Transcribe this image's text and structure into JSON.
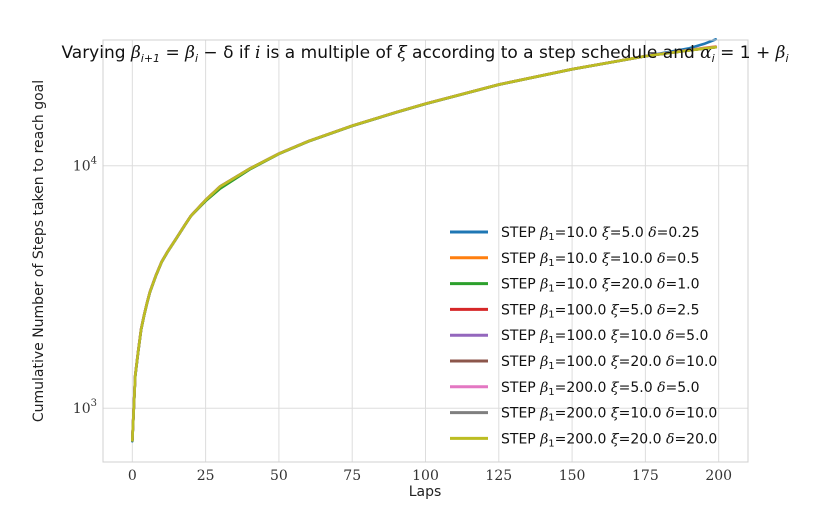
{
  "chart_data": {
    "type": "line",
    "title": "Varying β_{i+1} = β_i − δ if i is a multiple of ξ according to a step schedule and α_i = 1 + β_i",
    "title_parts": [
      "Varying ",
      "β",
      "i+1",
      " = ",
      "β",
      "i",
      " − δ if ",
      "i",
      " is a multiple of ",
      "ξ",
      " according to a step schedule and ",
      "α",
      "i",
      " = 1 + ",
      "β",
      "i"
    ],
    "xlabel": "Laps",
    "ylabel": "Cumulative Number of Steps taken to reach goal",
    "xlim": [
      -10,
      210
    ],
    "ylim": [
      600,
      33000
    ],
    "yscale": "log",
    "x_ticks": [
      0,
      25,
      50,
      75,
      100,
      125,
      150,
      175,
      200
    ],
    "x_tick_labels": [
      "0",
      "25",
      "50",
      "75",
      "100",
      "125",
      "150",
      "175",
      "200"
    ],
    "y_ticks": [
      1000,
      10000
    ],
    "y_tick_labels": [
      {
        "base": "10",
        "exp": "3"
      },
      {
        "base": "10",
        "exp": "4"
      }
    ],
    "grid": true,
    "legend_position": "lower-right",
    "series": [
      {
        "name": "STEP β1=10.0 ξ=5.0 δ=0.25",
        "color": "#1f77b4",
        "x": [
          0,
          1,
          2,
          3,
          4,
          5,
          6,
          8,
          10,
          12,
          15,
          18,
          20,
          25,
          30,
          40,
          50,
          60,
          75,
          90,
          100,
          125,
          150,
          175,
          190,
          195,
          199
        ],
        "y": [
          730,
          1350,
          1700,
          2100,
          2400,
          2700,
          3000,
          3500,
          4000,
          4400,
          5000,
          5700,
          6200,
          7200,
          8200,
          9700,
          11200,
          12600,
          14600,
          16600,
          18000,
          21600,
          25000,
          28300,
          30500,
          31800,
          33200
        ]
      },
      {
        "name": "STEP β1=10.0 ξ=10.0 δ=0.5",
        "color": "#ff7f0e",
        "x": [
          0,
          1,
          2,
          3,
          4,
          5,
          6,
          8,
          10,
          12,
          15,
          18,
          20,
          25,
          30,
          40,
          50,
          60,
          75,
          90,
          100,
          125,
          150,
          175,
          190,
          195,
          199
        ],
        "y": [
          740,
          1370,
          1720,
          2120,
          2420,
          2720,
          3020,
          3520,
          4020,
          4420,
          5020,
          5720,
          6220,
          7230,
          8230,
          9720,
          11220,
          12620,
          14620,
          16620,
          18020,
          21620,
          25020,
          28320,
          30000,
          30600,
          31000
        ]
      },
      {
        "name": "STEP β1=10.0 ξ=20.0 δ=1.0",
        "color": "#2ca02c",
        "x": [
          0,
          1,
          2,
          3,
          4,
          5,
          6,
          8,
          10,
          12,
          15,
          18,
          20,
          25,
          30,
          40,
          50,
          60,
          75,
          90,
          100,
          125,
          150,
          175,
          190,
          195,
          199
        ],
        "y": [
          735,
          1360,
          1710,
          2110,
          2410,
          2710,
          3010,
          3510,
          4010,
          4410,
          5010,
          5710,
          6210,
          7150,
          8050,
          9650,
          11180,
          12580,
          14580,
          16580,
          17980,
          21580,
          24980,
          28280,
          29900,
          30400,
          30800
        ]
      },
      {
        "name": "STEP β1=100.0 ξ=5.0 δ=2.5",
        "color": "#d62728",
        "x": [
          0,
          1,
          2,
          3,
          4,
          5,
          6,
          8,
          10,
          12,
          15,
          18,
          20,
          25,
          30,
          40,
          50,
          60,
          75,
          90,
          100,
          125,
          150,
          175,
          190,
          195,
          199
        ],
        "y": [
          738,
          1365,
          1715,
          2115,
          2415,
          2715,
          3015,
          3515,
          4015,
          4415,
          5015,
          5715,
          6215,
          7215,
          8215,
          9715,
          11215,
          12615,
          14615,
          16615,
          18015,
          21615,
          25015,
          28315,
          29950,
          30450,
          30850
        ]
      },
      {
        "name": "STEP β1=100.0 ξ=10.0 δ=5.0",
        "color": "#9467bd",
        "x": [
          0,
          1,
          2,
          3,
          4,
          5,
          6,
          8,
          10,
          12,
          15,
          18,
          20,
          25,
          30,
          40,
          50,
          60,
          75,
          90,
          100,
          125,
          150,
          175,
          190,
          195,
          199
        ],
        "y": [
          742,
          1372,
          1722,
          2122,
          2422,
          2722,
          3022,
          3522,
          4022,
          4422,
          5022,
          5722,
          6222,
          7222,
          8222,
          9722,
          11222,
          12622,
          14622,
          16622,
          18022,
          21622,
          25022,
          28322,
          29980,
          30480,
          30880
        ]
      },
      {
        "name": "STEP β1=100.0 ξ=20.0 δ=10.0",
        "color": "#8c564b",
        "x": [
          0,
          1,
          2,
          3,
          4,
          5,
          6,
          8,
          10,
          12,
          15,
          18,
          20,
          25,
          30,
          40,
          50,
          60,
          75,
          90,
          100,
          125,
          150,
          175,
          190,
          195,
          199
        ],
        "y": [
          736,
          1362,
          1712,
          2112,
          2412,
          2712,
          3012,
          3512,
          4012,
          4412,
          5012,
          5712,
          6212,
          7212,
          8212,
          9712,
          11212,
          12612,
          14612,
          16612,
          18012,
          21612,
          25012,
          28312,
          29920,
          30420,
          30820
        ]
      },
      {
        "name": "STEP β1=200.0 ξ=5.0 δ=5.0",
        "color": "#e377c2",
        "x": [
          0,
          1,
          2,
          3,
          4,
          5,
          6,
          8,
          10,
          12,
          15,
          18,
          20,
          25,
          30,
          40,
          50,
          60,
          75,
          90,
          100,
          125,
          150,
          175,
          190,
          195,
          199
        ],
        "y": [
          744,
          1374,
          1724,
          2124,
          2424,
          2724,
          3024,
          3524,
          4024,
          4424,
          5024,
          5724,
          6224,
          7224,
          8224,
          9724,
          11224,
          12624,
          14624,
          16624,
          18024,
          21624,
          25024,
          28324,
          29990,
          30490,
          30890
        ]
      },
      {
        "name": "STEP β1=200.0 ξ=10.0 δ=10.0",
        "color": "#7f7f7f",
        "x": [
          0,
          1,
          2,
          3,
          4,
          5,
          6,
          8,
          10,
          12,
          15,
          18,
          20,
          25,
          30,
          40,
          50,
          60,
          75,
          90,
          100,
          125,
          150,
          175,
          190,
          195,
          199
        ],
        "y": [
          739,
          1366,
          1716,
          2116,
          2416,
          2716,
          3016,
          3516,
          4016,
          4416,
          5016,
          5716,
          6216,
          7216,
          8216,
          9716,
          11216,
          12616,
          14616,
          16616,
          18016,
          21616,
          25016,
          28316,
          29940,
          30440,
          30840
        ]
      },
      {
        "name": "STEP β1=200.0 ξ=20.0 δ=20.0",
        "color": "#bcbd22",
        "x": [
          0,
          1,
          2,
          3,
          4,
          5,
          6,
          8,
          10,
          12,
          15,
          18,
          20,
          25,
          30,
          40,
          50,
          60,
          75,
          90,
          100,
          125,
          150,
          175,
          190,
          195,
          199
        ],
        "y": [
          737,
          1363,
          1713,
          2113,
          2413,
          2713,
          3013,
          3513,
          4013,
          4413,
          5013,
          5713,
          6213,
          7213,
          8213,
          9713,
          11213,
          12613,
          14613,
          16613,
          18013,
          21613,
          25013,
          28313,
          29930,
          30430,
          30830
        ]
      }
    ],
    "legend": [
      {
        "color": "#1f77b4",
        "parts": [
          "STEP ",
          "β",
          "1",
          "=10.0 ",
          "ξ",
          "=5.0 ",
          "δ",
          "=0.25"
        ]
      },
      {
        "color": "#ff7f0e",
        "parts": [
          "STEP ",
          "β",
          "1",
          "=10.0 ",
          "ξ",
          "=10.0 ",
          "δ",
          "=0.5"
        ]
      },
      {
        "color": "#2ca02c",
        "parts": [
          "STEP ",
          "β",
          "1",
          "=10.0 ",
          "ξ",
          "=20.0 ",
          "δ",
          "=1.0"
        ]
      },
      {
        "color": "#d62728",
        "parts": [
          "STEP ",
          "β",
          "1",
          "=100.0 ",
          "ξ",
          "=5.0 ",
          "δ",
          "=2.5"
        ]
      },
      {
        "color": "#9467bd",
        "parts": [
          "STEP ",
          "β",
          "1",
          "=100.0 ",
          "ξ",
          "=10.0 ",
          "δ",
          "=5.0"
        ]
      },
      {
        "color": "#8c564b",
        "parts": [
          "STEP ",
          "β",
          "1",
          "=100.0 ",
          "ξ",
          "=20.0 ",
          "δ",
          "=10.0"
        ]
      },
      {
        "color": "#e377c2",
        "parts": [
          "STEP ",
          "β",
          "1",
          "=200.0 ",
          "ξ",
          "=5.0 ",
          "δ",
          "=5.0"
        ]
      },
      {
        "color": "#7f7f7f",
        "parts": [
          "STEP ",
          "β",
          "1",
          "=200.0 ",
          "ξ",
          "=10.0 ",
          "δ",
          "=10.0"
        ]
      },
      {
        "color": "#bcbd22",
        "parts": [
          "STEP ",
          "β",
          "1",
          "=200.0 ",
          "ξ",
          "=20.0 ",
          "δ",
          "=20.0"
        ]
      }
    ]
  }
}
